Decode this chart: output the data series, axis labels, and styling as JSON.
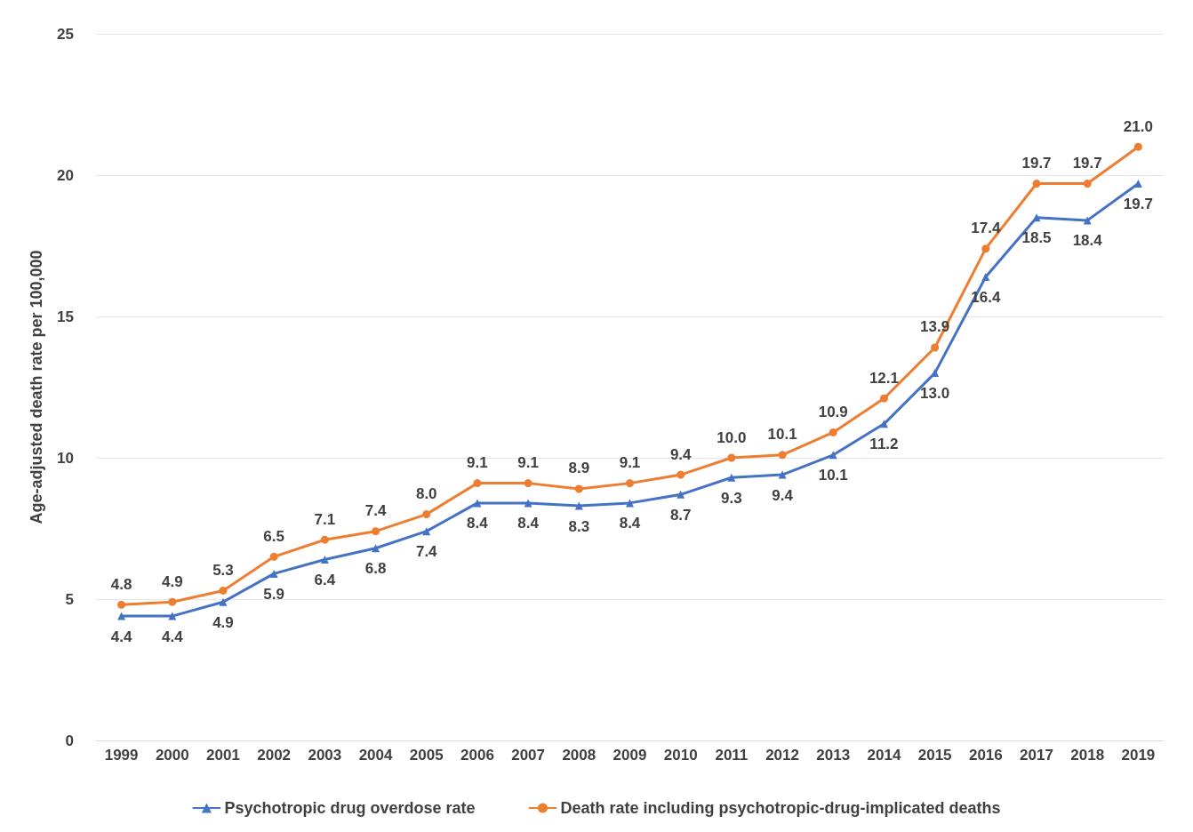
{
  "chart_data": {
    "type": "line",
    "ylabel": "Age-adjusted death rate per 100,000",
    "categories": [
      "1999",
      "2000",
      "2001",
      "2002",
      "2003",
      "2004",
      "2005",
      "2006",
      "2007",
      "2008",
      "2009",
      "2010",
      "2011",
      "2012",
      "2013",
      "2014",
      "2015",
      "2016",
      "2017",
      "2018",
      "2019"
    ],
    "series": [
      {
        "name": "Psychotropic drug overdose rate",
        "color": "#4472c4",
        "marker": "triangle",
        "values": [
          4.4,
          4.4,
          4.9,
          5.9,
          6.4,
          6.8,
          7.4,
          8.4,
          8.4,
          8.3,
          8.4,
          8.7,
          9.3,
          9.4,
          10.1,
          11.2,
          13.0,
          16.4,
          18.5,
          18.4,
          19.7
        ],
        "value_labels": [
          "4.4",
          "4.4",
          "4.9",
          "5.9",
          "6.4",
          "6.8",
          "7.4",
          "8.4",
          "8.4",
          "8.3",
          "8.4",
          "8.7",
          "9.3",
          "9.4",
          "10.1",
          "11.2",
          "13.0",
          "16.4",
          "18.5",
          "18.4",
          "19.7"
        ]
      },
      {
        "name": "Death rate including psychotropic-drug-implicated deaths",
        "color": "#ed7d31",
        "marker": "circle",
        "values": [
          4.8,
          4.9,
          5.3,
          6.5,
          7.1,
          7.4,
          8.0,
          9.1,
          9.1,
          8.9,
          9.1,
          9.4,
          10.0,
          10.1,
          10.9,
          12.1,
          13.9,
          17.4,
          19.7,
          19.7,
          21.0
        ],
        "value_labels": [
          "4.8",
          "4.9",
          "5.3",
          "6.5",
          "7.1",
          "7.4",
          "8.0",
          "9.1",
          "9.1",
          "8.9",
          "9.1",
          "9.4",
          "10.0",
          "10.1",
          "10.9",
          "12.1",
          "13.9",
          "17.4",
          "19.7",
          "19.7",
          "21.0"
        ]
      }
    ],
    "ylim": [
      0,
      25
    ],
    "yticks": [
      0,
      5,
      10,
      15,
      20,
      25
    ],
    "grid": "y",
    "legend": "bottom",
    "line_style": "solid"
  }
}
